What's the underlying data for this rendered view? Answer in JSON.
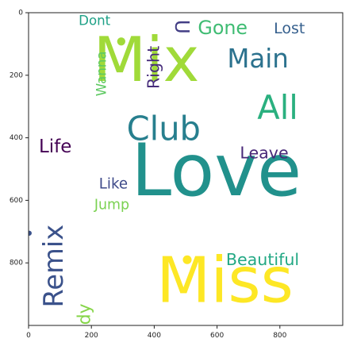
{
  "chart_data": {
    "type": "wordcloud",
    "title": "",
    "xlabel": "",
    "ylabel": "",
    "xlim": [
      0,
      1000
    ],
    "ylim": [
      1000,
      0
    ],
    "x_ticks": [
      0,
      200,
      400,
      600,
      800
    ],
    "y_ticks": [
      0,
      200,
      400,
      600,
      800
    ],
    "grid": false,
    "words": [
      {
        "text": "Love",
        "x": 598,
        "y": 520,
        "size": 230,
        "rotate": 0,
        "color": "#21918c"
      },
      {
        "text": "Miss",
        "x": 625,
        "y": 870,
        "size": 200,
        "rotate": 0,
        "color": "#fde725"
      },
      {
        "text": "Mix",
        "x": 375,
        "y": 165,
        "size": 195,
        "rotate": 0,
        "color": "#a0da39"
      },
      {
        "text": "Club",
        "x": 430,
        "y": 380,
        "size": 105,
        "rotate": 0,
        "color": "#277f8e"
      },
      {
        "text": "All",
        "x": 793,
        "y": 312,
        "size": 105,
        "rotate": 0,
        "color": "#2ab07f"
      },
      {
        "text": "Main",
        "x": 730,
        "y": 152,
        "size": 82,
        "rotate": 0,
        "color": "#2c728e"
      },
      {
        "text": "Remix",
        "x": 85,
        "y": 810,
        "size": 85,
        "rotate": -90,
        "color": "#3b528b"
      },
      {
        "text": "Gone",
        "x": 618,
        "y": 52,
        "size": 60,
        "rotate": 0,
        "color": "#3fbc73"
      },
      {
        "text": "Lost",
        "x": 830,
        "y": 52,
        "size": 48,
        "rotate": 0,
        "color": "#355f8d"
      },
      {
        "text": "Dont",
        "x": 210,
        "y": 28,
        "size": 42,
        "rotate": 0,
        "color": "#1fa187"
      },
      {
        "text": "U",
        "x": 485,
        "y": 45,
        "size": 62,
        "rotate": 90,
        "color": "#433e85"
      },
      {
        "text": "Right",
        "x": 400,
        "y": 175,
        "size": 52,
        "rotate": -90,
        "color": "#472d7b"
      },
      {
        "text": "Wanna",
        "x": 235,
        "y": 195,
        "size": 42,
        "rotate": -90,
        "color": "#5ec962"
      },
      {
        "text": "Life",
        "x": 85,
        "y": 430,
        "size": 58,
        "rotate": 0,
        "color": "#440154"
      },
      {
        "text": "Leave",
        "x": 750,
        "y": 450,
        "size": 52,
        "rotate": 0,
        "color": "#482878"
      },
      {
        "text": "Like",
        "x": 270,
        "y": 550,
        "size": 46,
        "rotate": 0,
        "color": "#3e4a89"
      },
      {
        "text": "Jump",
        "x": 265,
        "y": 615,
        "size": 44,
        "rotate": 0,
        "color": "#7ad151"
      },
      {
        "text": "Beautiful",
        "x": 745,
        "y": 792,
        "size": 52,
        "rotate": 0,
        "color": "#22a884"
      },
      {
        "text": "Body",
        "x": 180,
        "y": 1000,
        "size": 55,
        "rotate": -90,
        "color": "#86d549"
      }
    ],
    "dots": [
      {
        "x": 295,
        "y": 92,
        "r": 13,
        "color": "#a0da39"
      },
      {
        "x": 505,
        "y": 790,
        "r": 14,
        "color": "#fde725"
      },
      {
        "x": 2,
        "y": 705,
        "r": 8,
        "color": "#3b528b"
      }
    ]
  }
}
